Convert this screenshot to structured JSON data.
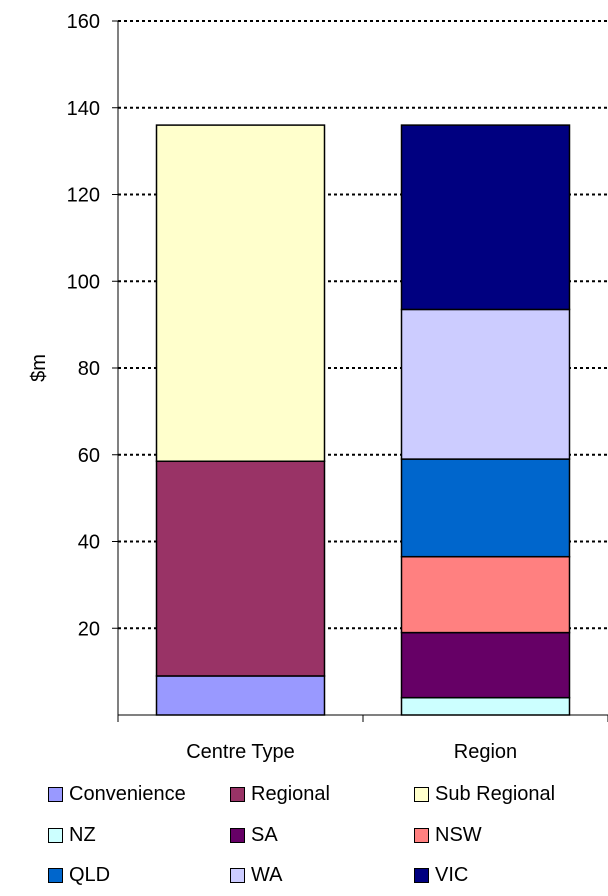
{
  "chart_data": {
    "type": "bar",
    "stacked": true,
    "title": "",
    "xlabel": "",
    "ylabel": "$m",
    "ylim": [
      0,
      160
    ],
    "yticks": [
      20,
      40,
      60,
      80,
      100,
      120,
      140,
      160
    ],
    "grid": true,
    "legend_position": "bottom",
    "categories": [
      "Centre Type",
      "Region"
    ],
    "series": [
      {
        "name": "Convenience",
        "color": "#9999FF",
        "values": [
          9,
          0
        ]
      },
      {
        "name": "Regional",
        "color": "#993366",
        "values": [
          49.5,
          0
        ]
      },
      {
        "name": "Sub Regional",
        "color": "#FFFFCC",
        "values": [
          77.5,
          0
        ]
      },
      {
        "name": "NZ",
        "color": "#CCFFFF",
        "values": [
          0,
          4
        ]
      },
      {
        "name": "SA",
        "color": "#660066",
        "values": [
          0,
          15
        ]
      },
      {
        "name": "NSW",
        "color": "#FF8080",
        "values": [
          0,
          17.5
        ]
      },
      {
        "name": "QLD",
        "color": "#0066CC",
        "values": [
          0,
          22.5
        ]
      },
      {
        "name": "WA",
        "color": "#CCCCFF",
        "values": [
          0,
          34.5
        ]
      },
      {
        "name": "VIC",
        "color": "#000080",
        "values": [
          0,
          42.5
        ]
      }
    ]
  }
}
